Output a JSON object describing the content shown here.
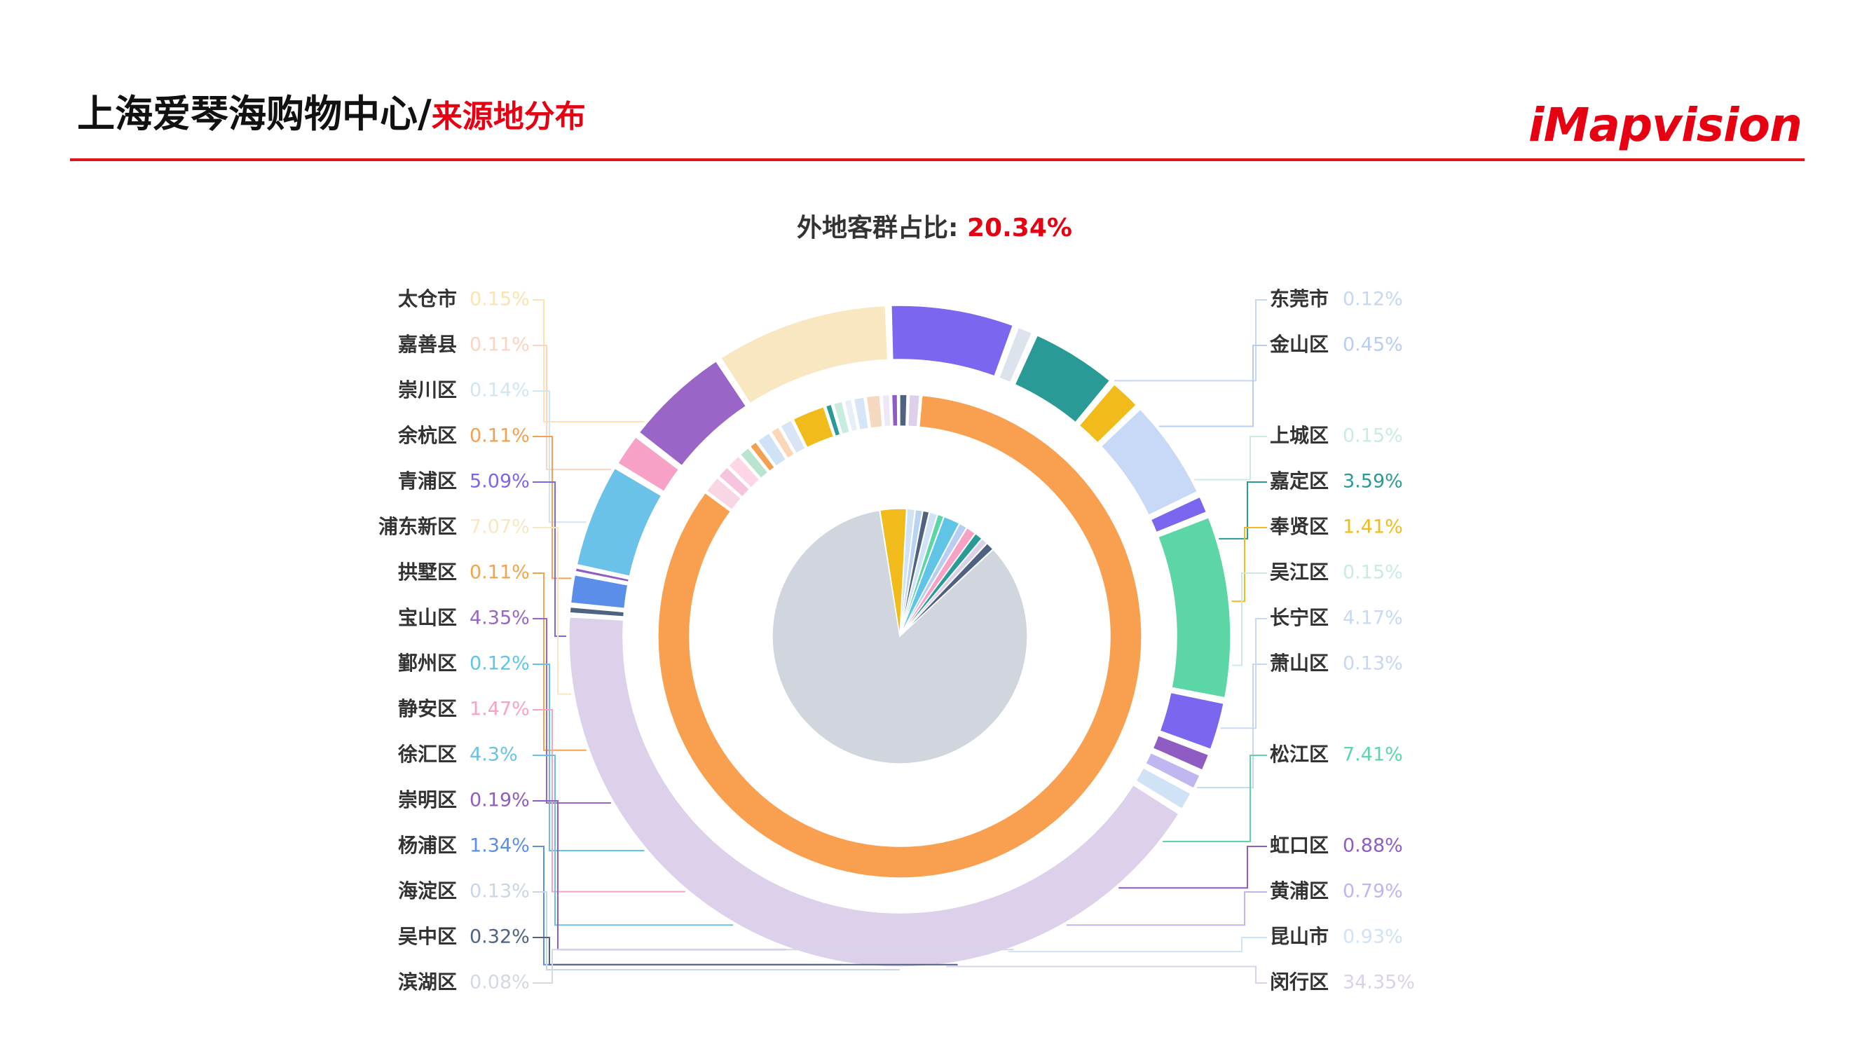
{
  "header": {
    "title_main": "上海爱琴海购物中心/",
    "title_sub": "来源地分布",
    "logo": "iMapvision"
  },
  "colors": {
    "accent": "#e60012",
    "rule": "#e0141e"
  },
  "chart_data": {
    "type": "pie",
    "subtitle_label": "外地客群占比:",
    "subtitle_value": "20.34%",
    "left_labels": [
      {
        "name": "太仓市",
        "value": "0.15%",
        "color": "#fde3b0"
      },
      {
        "name": "嘉善县",
        "value": "0.11%",
        "color": "#fcd4c0"
      },
      {
        "name": "崇川区",
        "value": "0.14%",
        "color": "#cfe6f5"
      },
      {
        "name": "余杭区",
        "value": "0.11%",
        "color": "#f3a052"
      },
      {
        "name": "青浦区",
        "value": "5.09%",
        "color": "#7b66f0"
      },
      {
        "name": "浦东新区",
        "value": "7.07%",
        "color": "#f8e7c0"
      },
      {
        "name": "拱墅区",
        "value": "0.11%",
        "color": "#f1a44c"
      },
      {
        "name": "宝山区",
        "value": "4.35%",
        "color": "#9966c7"
      },
      {
        "name": "鄞州区",
        "value": "0.12%",
        "color": "#5fc4e6"
      },
      {
        "name": "静安区",
        "value": "1.47%",
        "color": "#f7a1c7"
      },
      {
        "name": "徐汇区",
        "value": "4.3%",
        "color": "#6ac2e8"
      },
      {
        "name": "崇明区",
        "value": "0.19%",
        "color": "#8e5cc2"
      },
      {
        "name": "杨浦区",
        "value": "1.34%",
        "color": "#5b8ee8"
      },
      {
        "name": "海淀区",
        "value": "0.13%",
        "color": "#c9d6e8"
      },
      {
        "name": "吴中区",
        "value": "0.32%",
        "color": "#4f6280"
      },
      {
        "name": "滨湖区",
        "value": "0.08%",
        "color": "#d3d9e3"
      }
    ],
    "right_labels": [
      {
        "name": "东莞市",
        "value": "0.12%",
        "color": "#c6d7f2"
      },
      {
        "name": "金山区",
        "value": "0.45%",
        "color": "#b8cdf3"
      },
      {
        "name": "上城区",
        "value": "0.15%",
        "color": "#c9ecdf"
      },
      {
        "name": "嘉定区",
        "value": "3.59%",
        "color": "#2a9a96"
      },
      {
        "name": "奉贤区",
        "value": "1.41%",
        "color": "#f2bb1c"
      },
      {
        "name": "吴江区",
        "value": "0.15%",
        "color": "#c9ecdf"
      },
      {
        "name": "长宁区",
        "value": "4.17%",
        "color": "#c8d8f7"
      },
      {
        "name": "萧山区",
        "value": "0.13%",
        "color": "#c6d7f2"
      },
      {
        "name": "松江区",
        "value": "7.41%",
        "color": "#5cd6a6"
      },
      {
        "name": "虹口区",
        "value": "0.88%",
        "color": "#8e5cc2"
      },
      {
        "name": "黄浦区",
        "value": "0.79%",
        "color": "#c0b6f0"
      },
      {
        "name": "昆山市",
        "value": "0.93%",
        "color": "#cfe2f6"
      },
      {
        "name": "闵行区",
        "value": "34.35%",
        "color": "#dcd0ea"
      }
    ],
    "outer_ring": [
      {
        "name": "闵行区",
        "value": 34.35,
        "color": "#dcd0ea"
      },
      {
        "name": "吴中区",
        "value": 0.32,
        "color": "#4f6280"
      },
      {
        "name": "杨浦区",
        "value": 1.34,
        "color": "#5b8ee8"
      },
      {
        "name": "崇明区",
        "value": 0.19,
        "color": "#8e5cc2"
      },
      {
        "name": "徐汇区",
        "value": 4.3,
        "color": "#6ac2e8"
      },
      {
        "name": "静安区",
        "value": 1.47,
        "color": "#f7a1c7"
      },
      {
        "name": "宝山区",
        "value": 4.35,
        "color": "#9966c7"
      },
      {
        "name": "浦东新区",
        "value": 7.07,
        "color": "#f8e7c0"
      },
      {
        "name": "青浦区",
        "value": 5.09,
        "color": "#7b66f0"
      },
      {
        "name": "small-group-a",
        "value": 0.8,
        "color": "#dde3ec"
      },
      {
        "name": "嘉定区",
        "value": 3.59,
        "color": "#2a9a96"
      },
      {
        "name": "奉贤区",
        "value": 1.41,
        "color": "#f2bb1c"
      },
      {
        "name": "长宁区",
        "value": 4.17,
        "color": "#c8d8f7"
      },
      {
        "name": "虹口区",
        "value": 0.88,
        "color": "#7b66f0"
      },
      {
        "name": "松江区",
        "value": 7.41,
        "color": "#5cd6a6"
      },
      {
        "name": "青浦区-b",
        "value": 2.1,
        "color": "#7b66f0"
      },
      {
        "name": "虹口区-b",
        "value": 0.88,
        "color": "#8e5cc2"
      },
      {
        "name": "黄浦区",
        "value": 0.79,
        "color": "#c0b6f0"
      },
      {
        "name": "昆山市",
        "value": 0.93,
        "color": "#cfe2f6"
      }
    ],
    "middle_ring": [
      {
        "value": 79.66,
        "color": "#f9a050"
      },
      {
        "value": 1.2,
        "color": "#f8d6e4"
      },
      {
        "value": 0.9,
        "color": "#f6c4dc"
      },
      {
        "value": 1.0,
        "color": "#ffd6e6"
      },
      {
        "value": 0.8,
        "color": "#b9e5d0"
      },
      {
        "value": 0.6,
        "color": "#f3a052"
      },
      {
        "value": 1.0,
        "color": "#cfe2f6"
      },
      {
        "value": 0.7,
        "color": "#fbd7b8"
      },
      {
        "value": 0.9,
        "color": "#d9e4f5"
      },
      {
        "value": 2.2,
        "color": "#f2bb1c"
      },
      {
        "value": 0.5,
        "color": "#2a9a96"
      },
      {
        "value": 0.7,
        "color": "#c8ecde"
      },
      {
        "value": 0.6,
        "color": "#e7eef8"
      },
      {
        "value": 0.8,
        "color": "#d6e6f7"
      },
      {
        "value": 1.0,
        "color": "#f4d8bf"
      },
      {
        "value": 0.6,
        "color": "#eee8f6"
      },
      {
        "value": 0.5,
        "color": "#8e5cc2"
      },
      {
        "value": 0.6,
        "color": "#4f6280"
      },
      {
        "value": 0.8,
        "color": "#dcd0ea"
      }
    ],
    "inner_pie": [
      {
        "value": 79.66,
        "color": "#d1d6de"
      },
      {
        "value": 3.2,
        "color": "#f2bb1c"
      },
      {
        "value": 1.0,
        "color": "#cfe2f6"
      },
      {
        "value": 0.9,
        "color": "#b9d4f2"
      },
      {
        "value": 0.8,
        "color": "#4f6280"
      },
      {
        "value": 1.0,
        "color": "#cfe2f6"
      },
      {
        "value": 0.8,
        "color": "#5cd6a6"
      },
      {
        "value": 2.0,
        "color": "#5fc4e6"
      },
      {
        "value": 1.0,
        "color": "#b8cdf3"
      },
      {
        "value": 1.2,
        "color": "#f7a1c7"
      },
      {
        "value": 1.0,
        "color": "#2a9a96"
      },
      {
        "value": 0.8,
        "color": "#dcd0ea"
      },
      {
        "value": 1.0,
        "color": "#4f6280"
      }
    ]
  }
}
